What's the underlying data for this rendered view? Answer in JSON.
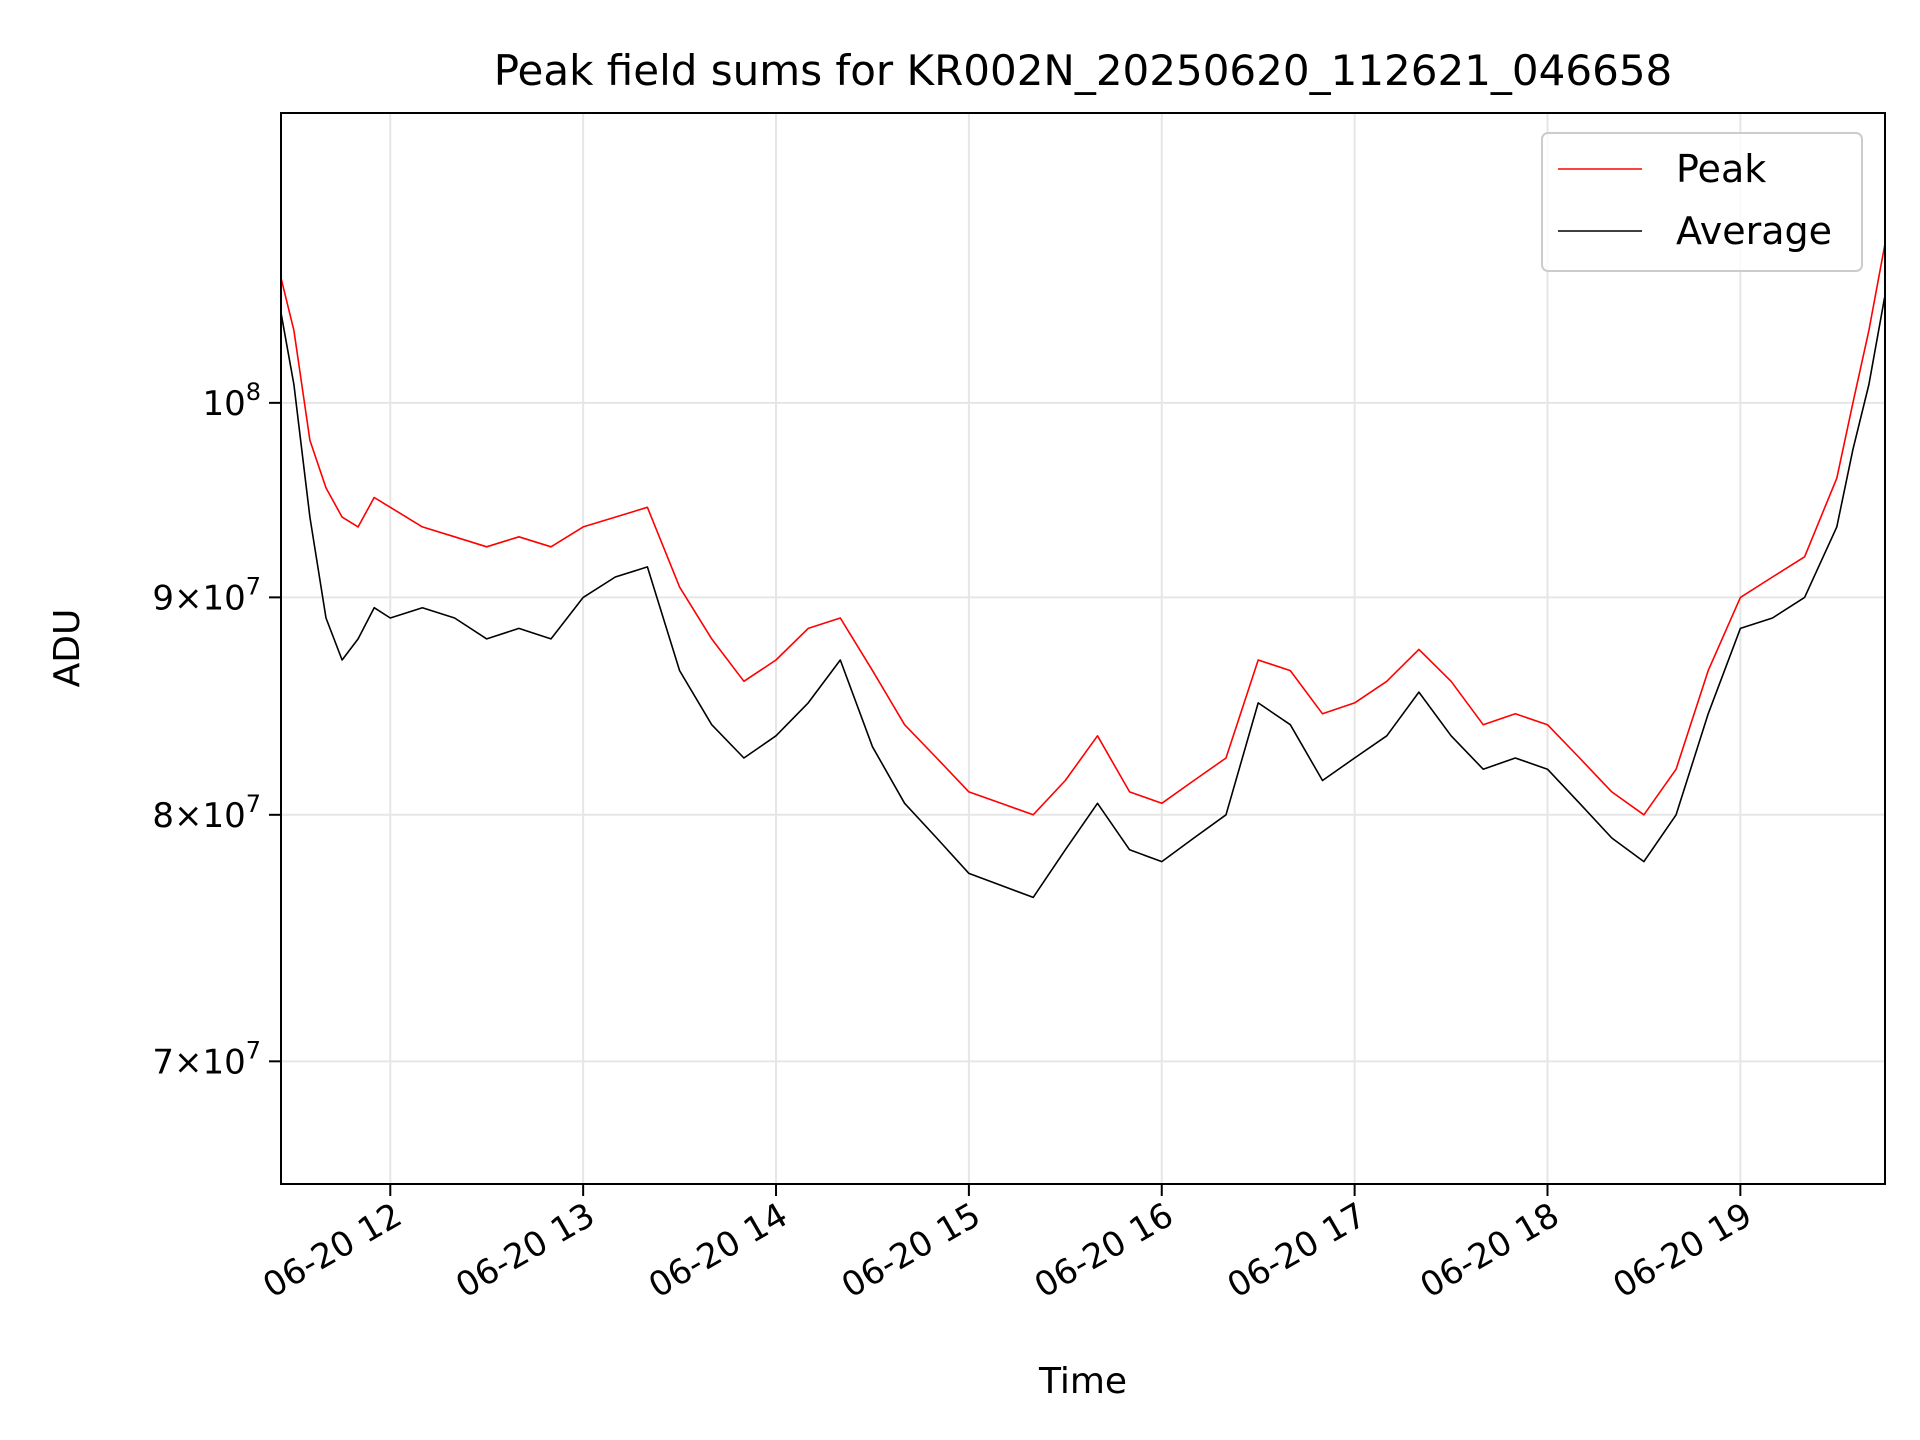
{
  "chart_data": {
    "type": "line",
    "title": "Peak field sums for KR002N_20250620_112621_046658",
    "xlabel": "Time",
    "ylabel": "ADU",
    "y_scale": "log",
    "ylim": [
      65500000,
      117000000
    ],
    "xlim": [
      "2025-06-20 11:26",
      "2025-06-20 19:45"
    ],
    "grid": true,
    "legend_position": "top-right",
    "x_ticks": [
      {
        "label": "06-20 12",
        "value": "2025-06-20 12:00"
      },
      {
        "label": "06-20 13",
        "value": "2025-06-20 13:00"
      },
      {
        "label": "06-20 14",
        "value": "2025-06-20 14:00"
      },
      {
        "label": "06-20 15",
        "value": "2025-06-20 15:00"
      },
      {
        "label": "06-20 16",
        "value": "2025-06-20 16:00"
      },
      {
        "label": "06-20 17",
        "value": "2025-06-20 17:00"
      },
      {
        "label": "06-20 18",
        "value": "2025-06-20 18:00"
      },
      {
        "label": "06-20 19",
        "value": "2025-06-20 19:00"
      }
    ],
    "y_ticks": [
      {
        "value": 70000000,
        "base": "7×10",
        "exp": "7"
      },
      {
        "value": 80000000,
        "base": "8×10",
        "exp": "7"
      },
      {
        "value": 90000000,
        "base": "9×10",
        "exp": "7"
      },
      {
        "value": 100000000,
        "base": "10",
        "exp": "8"
      }
    ],
    "x": [
      "2025-06-20 11:26",
      "2025-06-20 11:30",
      "2025-06-20 11:35",
      "2025-06-20 11:40",
      "2025-06-20 11:45",
      "2025-06-20 11:50",
      "2025-06-20 11:55",
      "2025-06-20 12:00",
      "2025-06-20 12:10",
      "2025-06-20 12:20",
      "2025-06-20 12:30",
      "2025-06-20 12:40",
      "2025-06-20 12:50",
      "2025-06-20 13:00",
      "2025-06-20 13:10",
      "2025-06-20 13:20",
      "2025-06-20 13:30",
      "2025-06-20 13:40",
      "2025-06-20 13:50",
      "2025-06-20 14:00",
      "2025-06-20 14:10",
      "2025-06-20 14:20",
      "2025-06-20 14:30",
      "2025-06-20 14:40",
      "2025-06-20 14:50",
      "2025-06-20 15:00",
      "2025-06-20 15:10",
      "2025-06-20 15:20",
      "2025-06-20 15:30",
      "2025-06-20 15:40",
      "2025-06-20 15:50",
      "2025-06-20 16:00",
      "2025-06-20 16:10",
      "2025-06-20 16:20",
      "2025-06-20 16:30",
      "2025-06-20 16:40",
      "2025-06-20 16:50",
      "2025-06-20 17:00",
      "2025-06-20 17:10",
      "2025-06-20 17:20",
      "2025-06-20 17:30",
      "2025-06-20 17:40",
      "2025-06-20 17:50",
      "2025-06-20 18:00",
      "2025-06-20 18:10",
      "2025-06-20 18:20",
      "2025-06-20 18:30",
      "2025-06-20 18:40",
      "2025-06-20 18:50",
      "2025-06-20 19:00",
      "2025-06-20 19:10",
      "2025-06-20 19:20",
      "2025-06-20 19:30",
      "2025-06-20 19:35",
      "2025-06-20 19:40",
      "2025-06-20 19:45"
    ],
    "series": [
      {
        "name": "Peak",
        "color": "#ff0000",
        "values": [
          107000000,
          104000000,
          98000000,
          95500000,
          94000000,
          93500000,
          95000000,
          94500000,
          93500000,
          93000000,
          92500000,
          93000000,
          92500000,
          93500000,
          94000000,
          94500000,
          90500000,
          88000000,
          86000000,
          87000000,
          88500000,
          89000000,
          86500000,
          84000000,
          82500000,
          81000000,
          80500000,
          80000000,
          81500000,
          83500000,
          81000000,
          80500000,
          81500000,
          82500000,
          87000000,
          86500000,
          84500000,
          85000000,
          86000000,
          87500000,
          86000000,
          84000000,
          84500000,
          84000000,
          82500000,
          81000000,
          80000000,
          82000000,
          86500000,
          90000000,
          91000000,
          92000000,
          96000000,
          100000000,
          104000000,
          109000000
        ]
      },
      {
        "name": "Average",
        "color": "#000000",
        "values": [
          105000000,
          101000000,
          94000000,
          89000000,
          87000000,
          88000000,
          89500000,
          89000000,
          89500000,
          89000000,
          88000000,
          88500000,
          88000000,
          90000000,
          91000000,
          91500000,
          86500000,
          84000000,
          82500000,
          83500000,
          85000000,
          87000000,
          83000000,
          80500000,
          79000000,
          77500000,
          77000000,
          76500000,
          78500000,
          80500000,
          78500000,
          78000000,
          79000000,
          80000000,
          85000000,
          84000000,
          81500000,
          82500000,
          83500000,
          85500000,
          83500000,
          82000000,
          82500000,
          82000000,
          80500000,
          79000000,
          78000000,
          80000000,
          84500000,
          88500000,
          89000000,
          90000000,
          93500000,
          97500000,
          101000000,
          106000000
        ]
      }
    ]
  }
}
